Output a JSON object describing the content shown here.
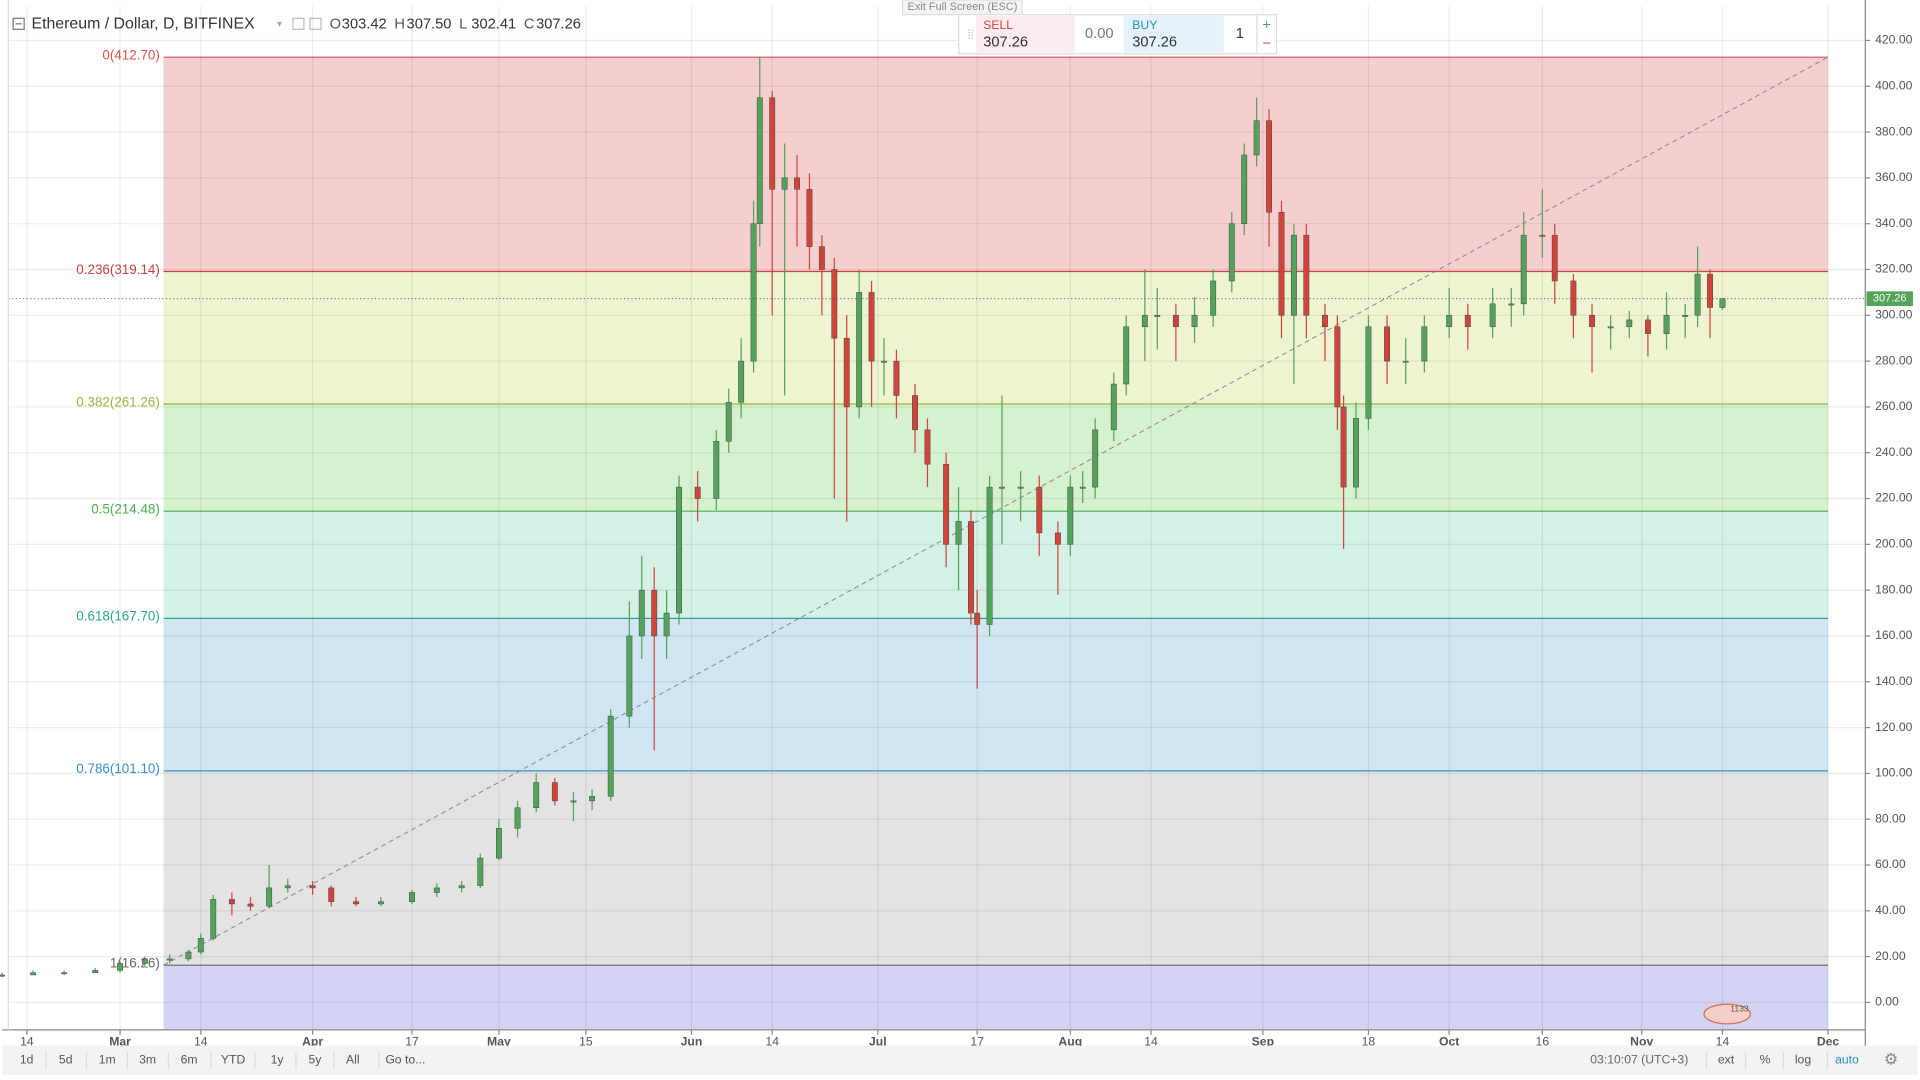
{
  "header": {
    "symbol": "Ethereum / Dollar, D, BITFINEX",
    "ohlc": [
      {
        "key": "O",
        "value": "303.42"
      },
      {
        "key": "H",
        "value": "307.50"
      },
      {
        "key": "L",
        "value": "302.41"
      },
      {
        "key": "C",
        "value": "307.26"
      }
    ],
    "exit_fullscreen": "Exit Full Screen (ESC)"
  },
  "trade": {
    "sell_label": "SELL",
    "sell_price": "307.26",
    "spread": "0.00",
    "buy_label": "BUY",
    "buy_price": "307.26",
    "quantity": "1",
    "plus": "+",
    "minus": "−"
  },
  "toolbar": {
    "ranges": [
      "1d",
      "5d",
      "1m",
      "3m",
      "6m",
      "YTD",
      "1y",
      "5y",
      "All",
      "Go to..."
    ],
    "time": "03:10:07 (UTC+3)",
    "options": [
      "ext",
      "%",
      "log",
      "auto"
    ]
  },
  "badge": "1133",
  "chart_data": {
    "type": "candlestick",
    "up_color": "#53a35a",
    "down_color": "#d0443a",
    "grid": true,
    "xlim": [
      42,
      341
    ],
    "ylim": [
      -12,
      435
    ],
    "xticks": [
      {
        "value": 45,
        "label": "14"
      },
      {
        "value": 60,
        "label": "Mar"
      },
      {
        "value": 73,
        "label": "14"
      },
      {
        "value": 91,
        "label": "Apr"
      },
      {
        "value": 107,
        "label": "17"
      },
      {
        "value": 121,
        "label": "May"
      },
      {
        "value": 135,
        "label": "15"
      },
      {
        "value": 152,
        "label": "Jun"
      },
      {
        "value": 165,
        "label": "14"
      },
      {
        "value": 182,
        "label": "Jul"
      },
      {
        "value": 198,
        "label": "17"
      },
      {
        "value": 213,
        "label": "Aug"
      },
      {
        "value": 226,
        "label": "14"
      },
      {
        "value": 244,
        "label": "Sep"
      },
      {
        "value": 261,
        "label": "18"
      },
      {
        "value": 274,
        "label": "Oct"
      },
      {
        "value": 289,
        "label": "16"
      },
      {
        "value": 305,
        "label": "Nov"
      },
      {
        "value": 318,
        "label": "14"
      },
      {
        "value": 335,
        "label": "Dec"
      }
    ],
    "yticks": [
      {
        "value": 0,
        "label": "0.00"
      },
      {
        "value": 20,
        "label": "20.00"
      },
      {
        "value": 40,
        "label": "40.00"
      },
      {
        "value": 60,
        "label": "60.00"
      },
      {
        "value": 80,
        "label": "80.00"
      },
      {
        "value": 100,
        "label": "100.00"
      },
      {
        "value": 120,
        "label": "120.00"
      },
      {
        "value": 140,
        "label": "140.00"
      },
      {
        "value": 160,
        "label": "160.00"
      },
      {
        "value": 180,
        "label": "180.00"
      },
      {
        "value": 200,
        "label": "200.00"
      },
      {
        "value": 220,
        "label": "220.00"
      },
      {
        "value": 240,
        "label": "240.00"
      },
      {
        "value": 260,
        "label": "260.00"
      },
      {
        "value": 280,
        "label": "280.00"
      },
      {
        "value": 300,
        "label": "300.00"
      },
      {
        "value": 320,
        "label": "320.00"
      },
      {
        "value": 340,
        "label": "340.00"
      },
      {
        "value": 360,
        "label": "360.00"
      },
      {
        "value": 380,
        "label": "380.00"
      },
      {
        "value": 400,
        "label": "400.00"
      },
      {
        "value": 420,
        "label": "420.00"
      }
    ],
    "candles": {
      "x": [
        41,
        46,
        51,
        56,
        60,
        64,
        68,
        71,
        73,
        75,
        78,
        81,
        84,
        87,
        91,
        94,
        98,
        102,
        107,
        111,
        115,
        118,
        121,
        124,
        127,
        130,
        133,
        136,
        139,
        142,
        144,
        146,
        148,
        150,
        153,
        156,
        158,
        160,
        162,
        163,
        165,
        167,
        169,
        171,
        173,
        175,
        177,
        179,
        181,
        183,
        185,
        188,
        190,
        193,
        195,
        197,
        198,
        200,
        202,
        205,
        208,
        211,
        213,
        215,
        217,
        220,
        222,
        225,
        227,
        230,
        233,
        236,
        239,
        241,
        243,
        245,
        247,
        249,
        251,
        254,
        256,
        257,
        259,
        261,
        264,
        267,
        270,
        274,
        277,
        281,
        284,
        286,
        289,
        291,
        294,
        297,
        300,
        303,
        306,
        309,
        312,
        314,
        316,
        318
      ],
      "open": [
        12,
        12,
        13,
        13,
        14,
        17,
        19,
        19,
        22,
        28,
        45,
        43,
        42,
        50,
        51,
        50,
        44,
        43,
        44,
        48,
        50,
        51,
        63,
        76,
        85,
        96,
        88,
        88,
        90,
        125,
        160,
        180,
        160,
        170,
        225,
        220,
        245,
        262,
        280,
        340,
        395,
        355,
        360,
        355,
        330,
        320,
        290,
        260,
        310,
        280,
        280,
        265,
        250,
        235,
        200,
        210,
        170,
        165,
        225,
        225,
        225,
        205,
        200,
        225,
        225,
        250,
        270,
        295,
        300,
        300,
        295,
        300,
        315,
        340,
        370,
        385,
        345,
        300,
        335,
        300,
        295,
        260,
        225,
        255,
        295,
        280,
        280,
        295,
        300,
        295,
        305,
        305,
        335,
        335,
        315,
        300,
        295,
        295,
        298,
        292,
        300,
        300,
        318,
        303.42
      ],
      "high": [
        13,
        14,
        14,
        15,
        18,
        20,
        21,
        23,
        30,
        47,
        48,
        46,
        60,
        54,
        53,
        51,
        46,
        46,
        49,
        52,
        53,
        65,
        80,
        88,
        100,
        98,
        92,
        93,
        128,
        175,
        195,
        190,
        180,
        230,
        232,
        250,
        268,
        290,
        350,
        413,
        398,
        375,
        370,
        362,
        335,
        325,
        300,
        320,
        315,
        290,
        285,
        270,
        255,
        240,
        225,
        215,
        180,
        230,
        265,
        232,
        230,
        210,
        230,
        232,
        255,
        275,
        300,
        320,
        312,
        305,
        308,
        320,
        345,
        375,
        395,
        390,
        350,
        340,
        340,
        305,
        300,
        265,
        262,
        300,
        300,
        290,
        300,
        312,
        305,
        312,
        312,
        345,
        355,
        340,
        318,
        305,
        300,
        302,
        300,
        310,
        305,
        330,
        320,
        307.5
      ],
      "low": [
        11,
        12,
        12,
        13,
        13,
        16,
        17,
        18,
        21,
        27,
        38,
        40,
        41,
        48,
        47,
        42,
        42,
        42,
        43,
        46,
        48,
        50,
        62,
        72,
        83,
        86,
        79,
        84,
        88,
        120,
        150,
        110,
        150,
        165,
        210,
        215,
        240,
        255,
        275,
        330,
        300,
        265,
        330,
        320,
        300,
        220,
        210,
        255,
        260,
        265,
        255,
        240,
        225,
        190,
        180,
        165,
        137,
        160,
        200,
        210,
        195,
        178,
        195,
        218,
        220,
        245,
        265,
        280,
        285,
        280,
        288,
        295,
        310,
        335,
        365,
        330,
        290,
        270,
        290,
        280,
        250,
        198,
        220,
        250,
        270,
        270,
        275,
        290,
        285,
        290,
        295,
        300,
        325,
        305,
        290,
        275,
        285,
        290,
        282,
        285,
        290,
        295,
        290,
        302.41
      ],
      "close": [
        12,
        13,
        13,
        14,
        17,
        19,
        19,
        22,
        28,
        45,
        43,
        42,
        50,
        51,
        50,
        44,
        43,
        44,
        48,
        50,
        51,
        63,
        76,
        85,
        96,
        88,
        88,
        90,
        125,
        160,
        180,
        160,
        170,
        225,
        220,
        245,
        262,
        280,
        340,
        395,
        355,
        360,
        355,
        330,
        320,
        290,
        260,
        310,
        280,
        280,
        265,
        250,
        235,
        200,
        210,
        170,
        165,
        225,
        225,
        225,
        205,
        200,
        225,
        225,
        250,
        270,
        295,
        300,
        300,
        295,
        300,
        315,
        340,
        370,
        385,
        345,
        300,
        335,
        300,
        295,
        260,
        225,
        255,
        295,
        280,
        280,
        295,
        300,
        295,
        305,
        305,
        335,
        335,
        315,
        300,
        295,
        295,
        298,
        292,
        300,
        300,
        318,
        303.42,
        307.26
      ]
    },
    "fib": {
      "x": [
        67,
        335
      ],
      "levels": [
        {
          "label": "0(412.70)",
          "value": 412.7,
          "color": "#d9534f",
          "fill": "#f5cfcf"
        },
        {
          "label": "0.236(319.14)",
          "value": 319.14,
          "color": "#c9433f",
          "fill": "#eef3d2"
        },
        {
          "label": "0.382(261.26)",
          "value": 261.26,
          "color": "#93b83a",
          "fill": "#d6f1cf"
        },
        {
          "label": "0.5(214.48)",
          "value": 214.48,
          "color": "#4cae4c",
          "fill": "#d3f1e4"
        },
        {
          "label": "0.618(167.70)",
          "value": 167.7,
          "color": "#2aa58b",
          "fill": "#d1e6f3"
        },
        {
          "label": "0.786(101.10)",
          "value": 101.1,
          "color": "#3a8fc0",
          "fill": "#e3e3e3"
        },
        {
          "label": "1(16.26)",
          "value": 16.26,
          "color": "#666666",
          "fill": "#d3d3f3"
        }
      ]
    },
    "trend_line": {
      "x": [
        67,
        335
      ],
      "y": [
        16.26,
        412.7
      ]
    }
  }
}
